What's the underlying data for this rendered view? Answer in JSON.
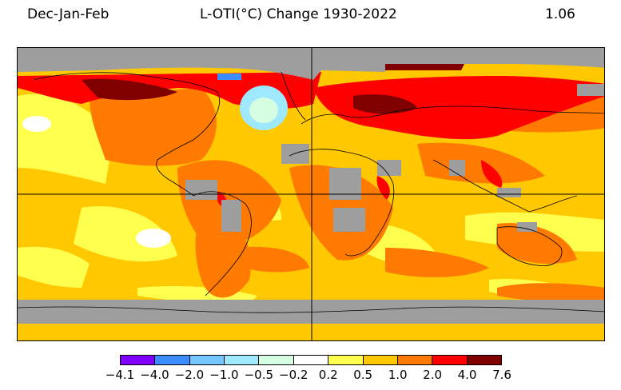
{
  "header": {
    "season": "Dec-Jan-Feb",
    "title": "L-OTI(°C) Change 1930-2022",
    "global_mean": "1.06"
  },
  "map": {
    "projection": "equirectangular",
    "gridlines": [
      "equator",
      "prime-meridian"
    ],
    "missing_data_color": "#9e9e9e"
  },
  "colorbar": {
    "colors": [
      "#8000ff",
      "#3a8cff",
      "#73c6ff",
      "#9ee9ff",
      "#d6ffe1",
      "#ffffff",
      "#ffff4d",
      "#ffc800",
      "#ff7a00",
      "#ff0000",
      "#800000"
    ],
    "tick_labels": [
      "−4.1",
      "−4.0",
      "−2.0",
      "−1.0",
      "−0.5",
      "−0.2",
      "0.2",
      "0.5",
      "1.0",
      "2.0",
      "4.0",
      "7.6"
    ]
  }
}
